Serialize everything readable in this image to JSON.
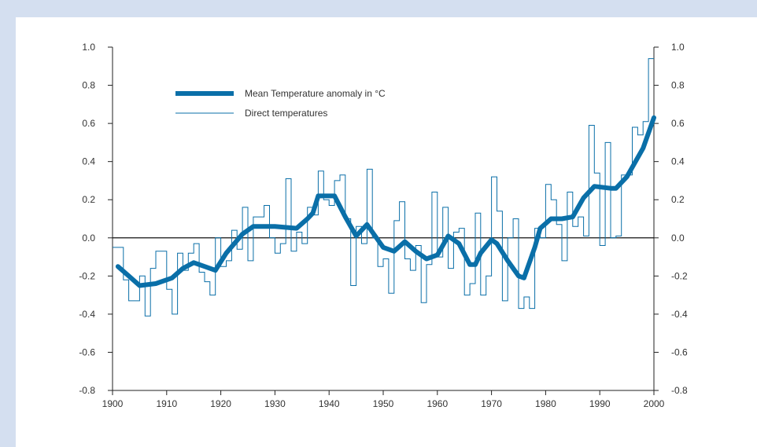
{
  "chart_data": {
    "type": "line",
    "title": "",
    "xlabel": "",
    "ylabel": "",
    "xlim": [
      1900,
      2000
    ],
    "ylim": [
      -0.8,
      1.0
    ],
    "x_ticks": [
      "1900",
      "1910",
      "1920",
      "1930",
      "1940",
      "1950",
      "1960",
      "1970",
      "1980",
      "1990",
      "2000"
    ],
    "y_ticks": [
      "1.0",
      "0.8",
      "0.6",
      "0.4",
      "0.2",
      "0.0",
      "-0.2",
      "-0.4",
      "-0.6",
      "-0.8"
    ],
    "grid": false,
    "zero_line": true,
    "right_axis_mirrored": true,
    "legend_position": "top-left",
    "colors": {
      "main": "#0a6fa8",
      "background": "#d4dff0"
    },
    "series": [
      {
        "name": "Mean Temperature anomaly in °C",
        "style": "thick-line",
        "x": [
          1901,
          1903,
          1905,
          1908,
          1911,
          1913,
          1915,
          1917,
          1919,
          1921,
          1924,
          1926,
          1930,
          1934,
          1936,
          1937,
          1938,
          1939,
          1941,
          1943,
          1945,
          1947,
          1949,
          1950,
          1952,
          1954,
          1956,
          1958,
          1960,
          1962,
          1964,
          1966,
          1967,
          1968,
          1970,
          1971,
          1973,
          1975,
          1976,
          1978,
          1979,
          1981,
          1983,
          1985,
          1987,
          1989,
          1992,
          1993,
          1995,
          1998,
          2000
        ],
        "values": [
          -0.15,
          -0.2,
          -0.25,
          -0.24,
          -0.21,
          -0.16,
          -0.13,
          -0.15,
          -0.17,
          -0.08,
          0.02,
          0.06,
          0.06,
          0.05,
          0.1,
          0.13,
          0.22,
          0.22,
          0.22,
          0.11,
          0.01,
          0.07,
          -0.01,
          -0.05,
          -0.07,
          -0.02,
          -0.07,
          -0.11,
          -0.09,
          0.01,
          -0.03,
          -0.14,
          -0.14,
          -0.08,
          -0.01,
          -0.03,
          -0.12,
          -0.2,
          -0.21,
          -0.05,
          0.05,
          0.1,
          0.1,
          0.11,
          0.21,
          0.27,
          0.26,
          0.26,
          0.32,
          0.47,
          0.63
        ]
      },
      {
        "name": "Direct temperatures",
        "style": "thin-step",
        "x": [
          1900,
          1901,
          1902,
          1903,
          1904,
          1905,
          1906,
          1907,
          1908,
          1909,
          1910,
          1911,
          1912,
          1913,
          1914,
          1915,
          1916,
          1917,
          1918,
          1919,
          1920,
          1921,
          1922,
          1923,
          1924,
          1925,
          1926,
          1927,
          1928,
          1929,
          1930,
          1931,
          1932,
          1933,
          1934,
          1935,
          1936,
          1937,
          1938,
          1939,
          1940,
          1941,
          1942,
          1943,
          1944,
          1945,
          1946,
          1947,
          1948,
          1949,
          1950,
          1951,
          1952,
          1953,
          1954,
          1955,
          1956,
          1957,
          1958,
          1959,
          1960,
          1961,
          1962,
          1963,
          1964,
          1965,
          1966,
          1967,
          1968,
          1969,
          1970,
          1971,
          1972,
          1973,
          1974,
          1975,
          1976,
          1977,
          1978,
          1979,
          1980,
          1981,
          1982,
          1983,
          1984,
          1985,
          1986,
          1987,
          1988,
          1989,
          1990,
          1991,
          1992,
          1993,
          1994,
          1995,
          1996,
          1997,
          1998,
          1999
        ],
        "values": [
          -0.05,
          -0.05,
          -0.22,
          -0.33,
          -0.33,
          -0.2,
          -0.41,
          -0.16,
          -0.07,
          -0.07,
          -0.27,
          -0.4,
          -0.08,
          -0.17,
          -0.08,
          -0.03,
          -0.18,
          -0.23,
          -0.3,
          0.0,
          -0.15,
          -0.12,
          0.04,
          -0.06,
          0.16,
          -0.12,
          0.11,
          0.11,
          0.17,
          0.0,
          -0.08,
          -0.03,
          0.31,
          -0.07,
          0.03,
          -0.03,
          0.16,
          0.12,
          0.35,
          0.2,
          0.17,
          0.3,
          0.33,
          0.1,
          -0.25,
          0.06,
          -0.03,
          0.36,
          0.0,
          -0.15,
          -0.11,
          -0.29,
          0.09,
          0.19,
          -0.11,
          -0.17,
          -0.04,
          -0.34,
          -0.14,
          0.24,
          -0.1,
          0.16,
          -0.16,
          0.03,
          0.05,
          -0.3,
          -0.24,
          0.13,
          -0.3,
          -0.2,
          0.32,
          0.14,
          -0.33,
          0.0,
          0.1,
          -0.37,
          -0.31,
          -0.37,
          0.05,
          0.0,
          0.28,
          0.2,
          0.07,
          -0.12,
          0.24,
          0.06,
          0.11,
          0.01,
          0.59,
          0.34,
          -0.04,
          0.5,
          0.0,
          0.01,
          0.33,
          0.33,
          0.58,
          0.54,
          0.61,
          0.94
        ]
      }
    ]
  }
}
